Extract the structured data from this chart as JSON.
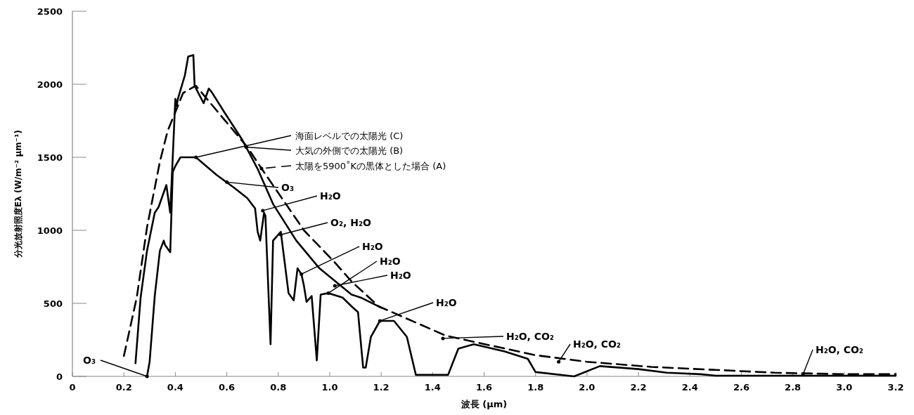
{
  "chart_data": {
    "type": "line",
    "xlabel": "波長 (µm)",
    "ylabel": "分光放射照度Eλ (W/m⁻² µm⁻¹)",
    "xlim": [
      0,
      3.2
    ],
    "xticks": [
      0,
      0.2,
      0.4,
      0.6,
      0.8,
      {
        "value": 1,
        "label": "1.0"
      },
      1.2,
      1.4,
      1.6,
      1.8,
      {
        "value": 2,
        "label": "2.0"
      },
      2.2,
      2.4,
      2.6,
      2.8,
      {
        "value": 3,
        "label": "3.0"
      },
      3.2
    ],
    "ylim": [
      0,
      2500
    ],
    "yticks": [
      0,
      500,
      1000,
      1500,
      2000,
      2500
    ],
    "legend": "top",
    "grid": false,
    "series": [
      {
        "name": "海面レベルでの太陽光 (C)",
        "color": "#000000",
        "line_style": "solid",
        "x": [
          0.29,
          0.3,
          0.32,
          0.34,
          0.355,
          0.36,
          0.38,
          0.39,
          0.4,
          0.42,
          0.48,
          0.56,
          0.63,
          0.68,
          0.71,
          0.72,
          0.73,
          0.745,
          0.75,
          0.77,
          0.78,
          0.81,
          0.84,
          0.86,
          0.875,
          0.89,
          0.9,
          0.91,
          0.93,
          0.95,
          0.965,
          0.995,
          1.05,
          1.085,
          1.11,
          1.13,
          1.14,
          1.16,
          1.195,
          1.25,
          1.3,
          1.335,
          1.46,
          1.5,
          1.56,
          1.68,
          1.77,
          1.8,
          1.95,
          2.05,
          2.2,
          2.31,
          2.44,
          2.5,
          2.8,
          3.2
        ],
        "values": [
          0,
          100,
          550,
          860,
          930,
          900,
          850,
          1400,
          1440,
          1500,
          1500,
          1380,
          1290,
          1220,
          1150,
          990,
          930,
          1120,
          1100,
          220,
          930,
          990,
          570,
          520,
          740,
          700,
          620,
          510,
          550,
          110,
          560,
          570,
          540,
          480,
          440,
          60,
          60,
          270,
          380,
          380,
          270,
          10,
          10,
          190,
          220,
          170,
          120,
          30,
          0,
          70,
          50,
          25,
          15,
          5,
          5,
          5
        ]
      },
      {
        "name": "大気の外側での太陽光 (B)",
        "color": "#000000",
        "line_style": "solid",
        "x": [
          0.245,
          0.265,
          0.29,
          0.32,
          0.335,
          0.365,
          0.38,
          0.39,
          0.4,
          0.405,
          0.41,
          0.437,
          0.45,
          0.47,
          0.475,
          0.51,
          0.53,
          0.54,
          0.59,
          0.66,
          0.72,
          0.78,
          0.87,
          0.96,
          1.085,
          1.12,
          1.2
        ],
        "values": [
          90,
          540,
          860,
          1120,
          1160,
          1310,
          1120,
          1500,
          1900,
          1850,
          1900,
          2060,
          2190,
          2200,
          1990,
          1870,
          1970,
          1950,
          1810,
          1620,
          1420,
          1180,
          930,
          740,
          560,
          540,
          470
        ]
      },
      {
        "name": "太陽を5900˚Kの黒体とした場合 (A)",
        "color": "#000000",
        "line_style": "dashed",
        "x": [
          0.2,
          0.25,
          0.29,
          0.34,
          0.37,
          0.43,
          0.48,
          0.58,
          0.68,
          0.74,
          0.83,
          0.9,
          1.02,
          1.085,
          1.19,
          1.45,
          1.63,
          1.8,
          2.0,
          2.25,
          2.49,
          2.73,
          3.0,
          3.2
        ],
        "values": [
          140,
          540,
          1020,
          1470,
          1680,
          1940,
          1990,
          1780,
          1570,
          1410,
          1180,
          1000,
          780,
          650,
          480,
          280,
          210,
          145,
          100,
          65,
          45,
          25,
          15,
          15
        ]
      }
    ],
    "annotations": [
      {
        "text": "O₃",
        "x": 0.29,
        "y": 0
      },
      {
        "text": "O₃",
        "x": 0.6,
        "y": 1330
      },
      {
        "text": "H₂O",
        "x": 0.74,
        "y": 1135
      },
      {
        "text": "O₂,  H₂O",
        "x": 0.81,
        "y": 970
      },
      {
        "text": "H₂O",
        "x": 0.89,
        "y": 700
      },
      {
        "text": "H₂O",
        "x": 0.995,
        "y": 570
      },
      {
        "text": "H₂O",
        "x": 1.02,
        "y": 620
      },
      {
        "text": "H₂O",
        "x": 1.195,
        "y": 380
      },
      {
        "text": "H₂O,  CO₂",
        "x": 1.44,
        "y": 260
      },
      {
        "text": "H₂O,  CO₂",
        "x": 1.89,
        "y": 100
      },
      {
        "text": "H₂O,  CO₂",
        "x": 2.84,
        "y": 15
      }
    ]
  }
}
